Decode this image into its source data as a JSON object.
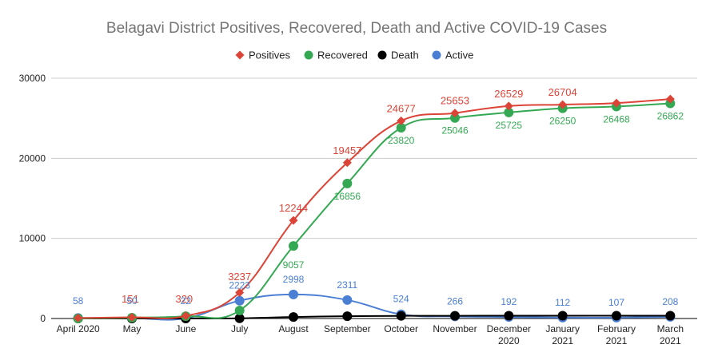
{
  "chart_data": {
    "type": "line",
    "title": "Belagavi District Positives, Recovered, Death and Active COVID-19 Cases",
    "categories": [
      [
        "April 2020"
      ],
      [
        "May"
      ],
      [
        "June"
      ],
      [
        "July"
      ],
      [
        "August"
      ],
      [
        "September"
      ],
      [
        "October"
      ],
      [
        "November"
      ],
      [
        "December",
        "2020"
      ],
      [
        "January",
        "2021"
      ],
      [
        "February",
        "2021"
      ],
      [
        "March",
        "2021"
      ]
    ],
    "ylim": [
      0,
      30000
    ],
    "yticks": [
      0,
      10000,
      20000,
      30000
    ],
    "grid": true,
    "legend_position": "top",
    "series": [
      {
        "name": "Positives",
        "color": "#db4437",
        "marker": "diamond",
        "values": [
          58,
          151,
          320,
          3237,
          12244,
          19457,
          24677,
          25653,
          26529,
          26704,
          26900,
          27400
        ],
        "labels": [
          "",
          "151",
          "320",
          "3237",
          "12244",
          "19457",
          "24677",
          "25653",
          "26529",
          "26704",
          "",
          ""
        ]
      },
      {
        "name": "Recovered",
        "color": "#34a853",
        "marker": "circle",
        "values": [
          0,
          100,
          290,
          1000,
          9057,
          16856,
          23820,
          25046,
          25725,
          26250,
          26468,
          26862
        ],
        "labels": [
          "",
          "",
          "",
          "",
          "9057",
          "16856",
          "23820",
          "25046",
          "25725",
          "26250",
          "26468",
          "26862"
        ]
      },
      {
        "name": "Death",
        "color": "#000000",
        "marker": "circle",
        "values": [
          0,
          0,
          5,
          30,
          190,
          290,
          330,
          340,
          345,
          345,
          345,
          345
        ],
        "labels": [
          "",
          "",
          "",
          "",
          "",
          "",
          "",
          "",
          "",
          "",
          "",
          ""
        ]
      },
      {
        "name": "Active",
        "color": "#4a7fd4",
        "marker": "circle",
        "values": [
          58,
          50,
          22,
          2223,
          2998,
          2311,
          524,
          266,
          192,
          112,
          107,
          208
        ],
        "labels": [
          "58",
          "50",
          "22",
          "2223",
          "2998",
          "2311",
          "524",
          "266",
          "192",
          "112",
          "107",
          "208"
        ]
      }
    ]
  }
}
